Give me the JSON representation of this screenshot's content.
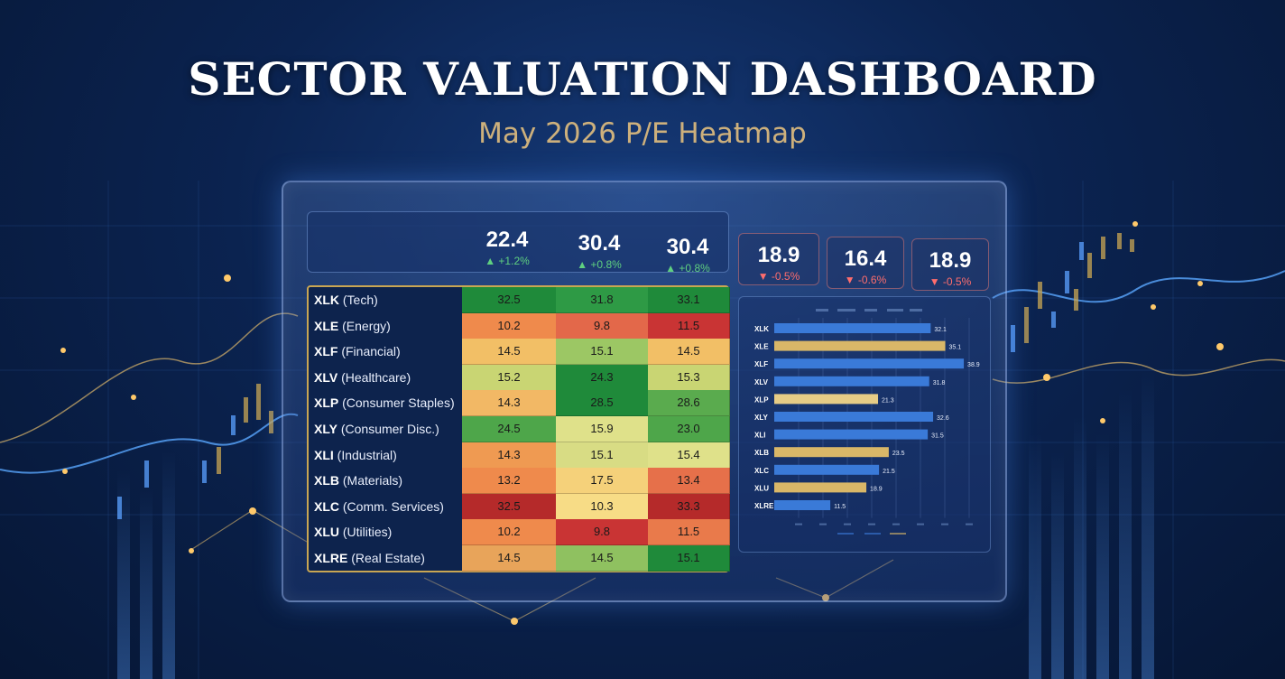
{
  "header": {
    "title": "SECTOR VALUATION DASHBOARD",
    "subtitle": "May 2026 P/E Heatmap"
  },
  "stats": [
    {
      "value": "22.4",
      "change": "+1.2%",
      "direction": "up"
    },
    {
      "value": "30.4",
      "change": "+0.8%",
      "direction": "up"
    },
    {
      "value": "30.4",
      "change": "+0.8%",
      "direction": "up"
    },
    {
      "value": "18.9",
      "change": "-0.5%",
      "direction": "down"
    },
    {
      "value": "16.4",
      "change": "-0.6%",
      "direction": "down"
    },
    {
      "value": "18.9",
      "change": "-0.5%",
      "direction": "down"
    }
  ],
  "heatmap": {
    "rows": [
      {
        "ticker": "XLK",
        "name": "(Tech)",
        "values": [
          "32.5",
          "31.8",
          "33.1"
        ],
        "colors": [
          "#1f8a3a",
          "#2e9a45",
          "#1f8a3a"
        ]
      },
      {
        "ticker": "XLE",
        "name": "(Energy)",
        "values": [
          "10.2",
          "9.8",
          "11.5"
        ],
        "colors": [
          "#ef8a4c",
          "#e3684a",
          "#c93434"
        ]
      },
      {
        "ticker": "XLF",
        "name": "(Financial)",
        "values": [
          "14.5",
          "15.1",
          "14.5"
        ],
        "colors": [
          "#f2bf66",
          "#9cc764",
          "#f2bf66"
        ]
      },
      {
        "ticker": "XLV",
        "name": "(Healthcare)",
        "values": [
          "15.2",
          "24.3",
          "15.3"
        ],
        "colors": [
          "#c9d573",
          "#1f8a3a",
          "#c9d573"
        ]
      },
      {
        "ticker": "XLP",
        "name": "(Consumer Staples)",
        "values": [
          "14.3",
          "28.5",
          "28.6"
        ],
        "colors": [
          "#f2b865",
          "#1f8a3a",
          "#5aab4e"
        ]
      },
      {
        "ticker": "XLY",
        "name": "(Consumer Disc.)",
        "values": [
          "24.5",
          "15.9",
          "23.0"
        ],
        "colors": [
          "#4ea64a",
          "#dfe18a",
          "#4ea64a"
        ]
      },
      {
        "ticker": "XLI",
        "name": "(Industrial)",
        "values": [
          "14.3",
          "15.1",
          "15.4"
        ],
        "colors": [
          "#ef9a52",
          "#d8dc84",
          "#dfe18a"
        ]
      },
      {
        "ticker": "XLB",
        "name": "(Materials)",
        "values": [
          "13.2",
          "17.5",
          "13.4"
        ],
        "colors": [
          "#ef8a4c",
          "#f5d17a",
          "#e6704a"
        ]
      },
      {
        "ticker": "XLC",
        "name": "(Comm. Services)",
        "values": [
          "32.5",
          "10.3",
          "33.3"
        ],
        "colors": [
          "#b52a2a",
          "#f7dc86",
          "#b52a2a"
        ]
      },
      {
        "ticker": "XLU",
        "name": "(Utilities)",
        "values": [
          "10.2",
          "9.8",
          "11.5"
        ],
        "colors": [
          "#ef8a4c",
          "#c93434",
          "#e97a4b"
        ]
      },
      {
        "ticker": "XLRE",
        "name": "(Real Estate)",
        "values": [
          "14.5",
          "14.5",
          "15.1"
        ],
        "colors": [
          "#e8a45a",
          "#8fc160",
          "#1f8a3a"
        ]
      }
    ]
  },
  "chart_data": {
    "type": "bar",
    "orientation": "horizontal",
    "categories": [
      "XLK",
      "XLE",
      "XLF",
      "XLV",
      "XLP",
      "XLY",
      "XLI",
      "XLB",
      "XLC",
      "XLU",
      "XLRE"
    ],
    "values": [
      32.1,
      35.1,
      38.9,
      31.8,
      21.3,
      32.6,
      31.5,
      23.5,
      21.5,
      18.9,
      11.5
    ],
    "value_labels": [
      "32.1",
      "35.1",
      "38.9",
      "31.8",
      "21.3",
      "32.6",
      "31.5",
      "23.5",
      "21.5",
      "18.9",
      "11.5"
    ],
    "bar_colors": [
      "#3a7ad8",
      "#d9b768",
      "#3a7ad8",
      "#3a7ad8",
      "#e6cc86",
      "#3a7ad8",
      "#3a7ad8",
      "#d9b768",
      "#3a7ad8",
      "#d9b768",
      "#3a7ad8"
    ],
    "xlim": [
      0,
      40
    ],
    "grid": true,
    "legend": "bottom"
  }
}
